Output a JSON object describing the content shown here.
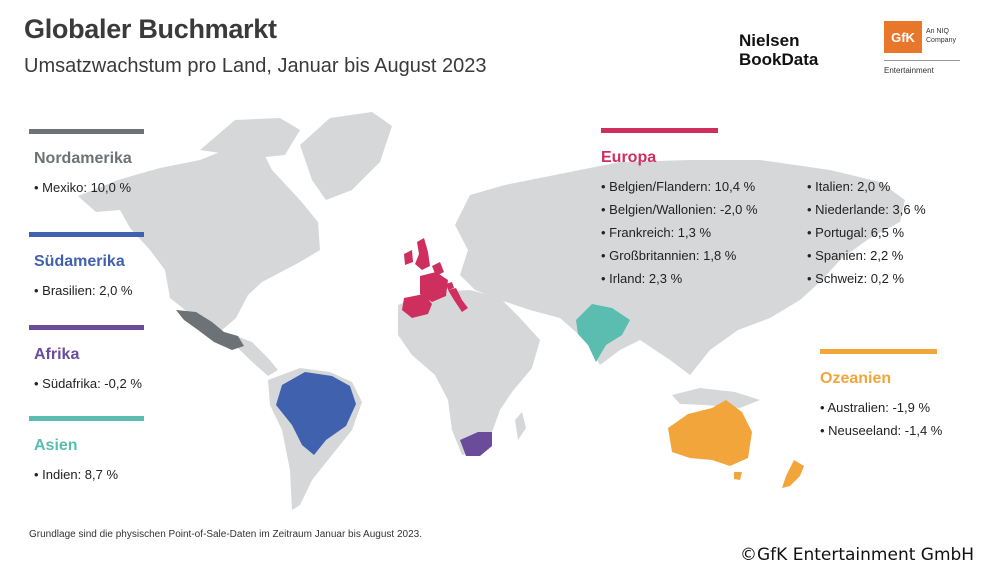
{
  "header": {
    "title": "Globaler Buchmarkt",
    "subtitle": "Umsatzwachstum pro Land, Januar bis August 2023"
  },
  "logos": {
    "nielsen_line1": "Nielsen",
    "nielsen_line2": "BookData",
    "gfk": "GfK",
    "gfk_tag": "An NIQ Company",
    "gfk_sub": "Entertainment"
  },
  "colors": {
    "land": "#d6d7d9",
    "nordamerika": "#6d7276",
    "suedamerika": "#4062ae",
    "afrika": "#6b4c9a",
    "asien": "#5bbcb0",
    "europa": "#cf2f5e",
    "ozeanien": "#f2a53a"
  },
  "regions": {
    "nordamerika": {
      "name": "Nordamerika",
      "items": [
        "• Mexiko: 10,0 %"
      ]
    },
    "suedamerika": {
      "name": "Südamerika",
      "items": [
        "• Brasilien: 2,0 %"
      ]
    },
    "afrika": {
      "name": "Afrika",
      "items": [
        "• Südafrika: -0,2 %"
      ]
    },
    "asien": {
      "name": "Asien",
      "items": [
        "• Indien: 8,7 %"
      ]
    },
    "europa": {
      "name": "Europa",
      "col1": [
        "• Belgien/Flandern: 10,4 %",
        "• Belgien/Wallonien: -2,0 %",
        "• Frankreich: 1,3 %",
        "• Großbritannien: 1,8 %",
        "• Irland: 2,3 %"
      ],
      "col2": [
        "• Italien: 2,0 %",
        "• Niederlande: 3,6 %",
        "• Portugal: 6,5 %",
        "• Spanien: 2,2 %",
        "• Schweiz: 0,2 %"
      ]
    },
    "ozeanien": {
      "name": "Ozeanien",
      "items": [
        "• Australien: -1,9 %",
        "• Neuseeland: -1,4 %"
      ]
    }
  },
  "footnote": "Grundlage sind die physischen Point-of-Sale-Daten im Zeitraum Januar bis August 2023.",
  "copyright": "©GfK Entertainment GmbH"
}
